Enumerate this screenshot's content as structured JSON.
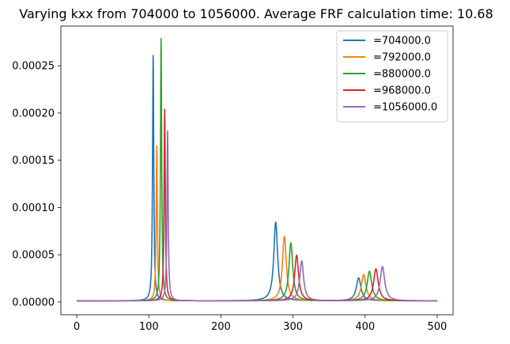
{
  "chart_data": {
    "type": "line",
    "title": "Varying kxx from 704000 to 1056000. Average FRF calculation time: 10.68",
    "xlabel": "",
    "ylabel": "",
    "xlim": [
      -22,
      522
    ],
    "ylim": [
      -1.35e-05,
      0.000292
    ],
    "xticks": [
      0,
      100,
      200,
      300,
      400,
      500
    ],
    "xtick_labels": [
      "0",
      "100",
      "200",
      "300",
      "400",
      "500"
    ],
    "yticks": [
      0,
      5e-05,
      0.0001,
      0.00015,
      0.0002,
      0.00025
    ],
    "ytick_labels": [
      "0.00000",
      "0.00005",
      "0.00010",
      "0.00015",
      "0.00020",
      "0.00025"
    ],
    "grid": false,
    "legend_position": "upper right",
    "series": [
      {
        "name": "=704000.0",
        "color": "#1f77b4",
        "peaks": [
          {
            "x": 106,
            "y": 0.000261
          },
          {
            "x": 276,
            "y": 8.45e-05
          },
          {
            "x": 391,
            "y": 2.55e-05
          }
        ]
      },
      {
        "name": "=792000.0",
        "color": "#ff7f0e",
        "peaks": [
          {
            "x": 111,
            "y": 0.000165
          },
          {
            "x": 288,
            "y": 6.95e-05
          },
          {
            "x": 398,
            "y": 2.9e-05
          }
        ]
      },
      {
        "name": "=880000.0",
        "color": "#2ca02c",
        "peaks": [
          {
            "x": 117,
            "y": 0.000279
          },
          {
            "x": 297,
            "y": 6.25e-05
          },
          {
            "x": 406,
            "y": 3.25e-05
          }
        ]
      },
      {
        "name": "=968000.0",
        "color": "#d62728",
        "peaks": [
          {
            "x": 122,
            "y": 0.000204
          },
          {
            "x": 305,
            "y": 4.95e-05
          },
          {
            "x": 415,
            "y": 3.5e-05
          }
        ]
      },
      {
        "name": "=1056000.0",
        "color": "#9467bd",
        "peaks": [
          {
            "x": 126,
            "y": 0.000181
          },
          {
            "x": 312,
            "y": 4.35e-05
          },
          {
            "x": 424,
            "y": 3.75e-05
          }
        ]
      }
    ]
  }
}
